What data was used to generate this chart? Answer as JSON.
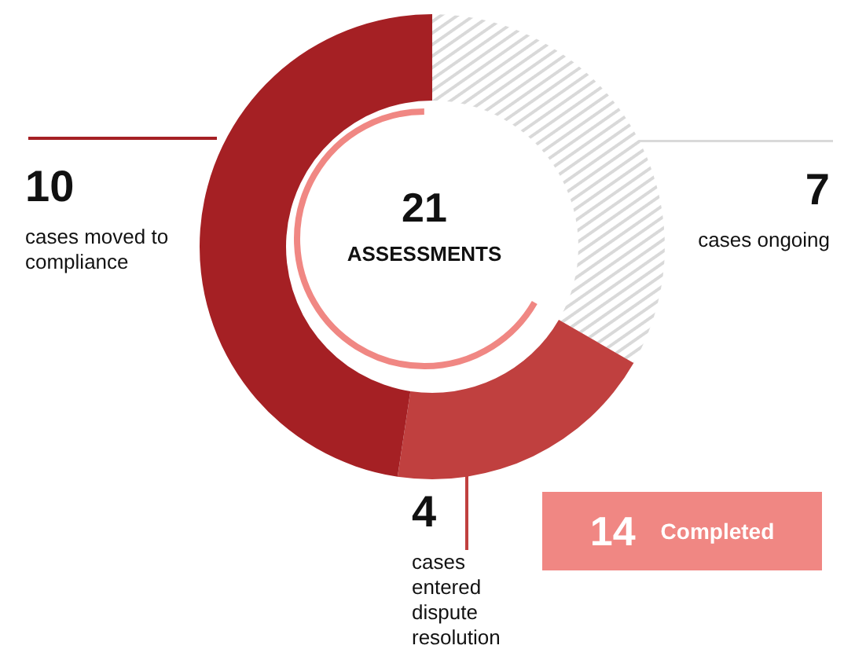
{
  "chart_data": {
    "type": "donut",
    "categories": [
      "cases ongoing",
      "cases entered dispute resolution",
      "cases moved to compliance"
    ],
    "values": [
      7,
      4,
      10
    ],
    "colors": [
      "#d9d9d9",
      "#c0403f",
      "#a52024"
    ],
    "data_labels": true,
    "annotations": [
      "21",
      "ASSESSMENTS",
      "14",
      "Completed"
    ]
  }
}
